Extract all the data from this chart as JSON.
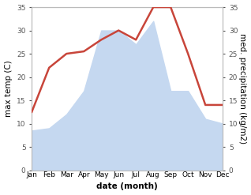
{
  "months": [
    "Jan",
    "Feb",
    "Mar",
    "Apr",
    "May",
    "Jun",
    "Jul",
    "Aug",
    "Sep",
    "Oct",
    "Nov",
    "Dec"
  ],
  "temperature": [
    12.5,
    22.0,
    25.0,
    25.5,
    28.0,
    30.0,
    28.0,
    35.0,
    35.0,
    25.0,
    14.0,
    14.0
  ],
  "precipitation": [
    8.5,
    9.0,
    12.0,
    17.0,
    30.0,
    30.0,
    27.0,
    32.0,
    17.0,
    17.0,
    11.0,
    10.0
  ],
  "temp_color": "#c8453a",
  "precip_color": "#c5d8f0",
  "background_color": "#ffffff",
  "ylim": [
    0,
    35
  ],
  "yticks": [
    0,
    5,
    10,
    15,
    20,
    25,
    30,
    35
  ],
  "ylabel_left": "max temp (C)",
  "ylabel_right": "med. precipitation (kg/m2)",
  "xlabel": "date (month)",
  "temp_linewidth": 1.8,
  "label_fontsize": 7.5,
  "tick_fontsize": 6.5,
  "spine_color": "#bbbbbb",
  "tick_color": "#555555"
}
